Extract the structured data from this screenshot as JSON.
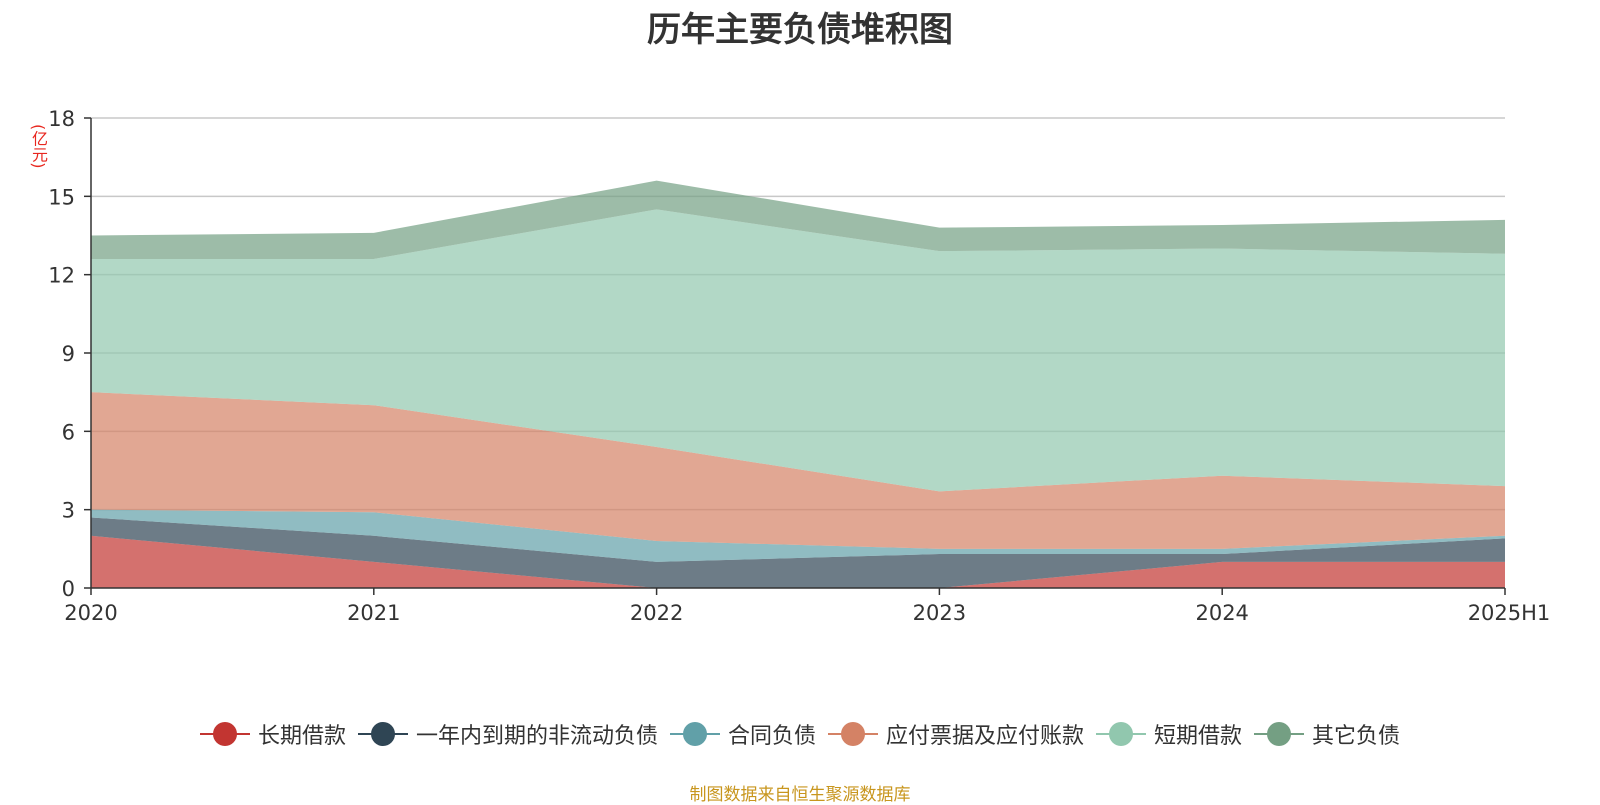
{
  "chart_data": {
    "type": "area",
    "stacked": true,
    "title": "历年主要负债堆积图",
    "unit_label": "(亿元)",
    "categories": [
      "2020",
      "2021",
      "2022",
      "2023",
      "2024",
      "2025H1"
    ],
    "ylim": [
      0,
      18
    ],
    "yticks": [
      "0",
      "3",
      "6",
      "9",
      "12",
      "15",
      "18"
    ],
    "grid": true,
    "legend_position": "bottom",
    "series": [
      {
        "name": "长期借款",
        "color": "#c23531",
        "values": [
          2.0,
          1.0,
          0.0,
          0.0,
          1.0,
          1.0
        ]
      },
      {
        "name": "一年内到期的非流动负债",
        "color": "#2f4554",
        "values": [
          0.7,
          1.0,
          1.0,
          1.3,
          0.3,
          0.9
        ]
      },
      {
        "name": "合同负债",
        "color": "#61a0a8",
        "values": [
          0.3,
          0.9,
          0.8,
          0.2,
          0.2,
          0.1
        ]
      },
      {
        "name": "应付票据及应付账款",
        "color": "#d48265",
        "values": [
          4.5,
          4.1,
          3.6,
          2.2,
          2.8,
          1.9
        ]
      },
      {
        "name": "短期借款",
        "color": "#91c7ae",
        "values": [
          5.1,
          5.6,
          9.1,
          9.2,
          8.7,
          8.9
        ]
      },
      {
        "name": "其它负债",
        "color": "#749f83",
        "values": [
          0.9,
          1.0,
          1.1,
          0.9,
          0.9,
          1.3
        ]
      }
    ]
  },
  "source": "制图数据来自恒生聚源数据库"
}
